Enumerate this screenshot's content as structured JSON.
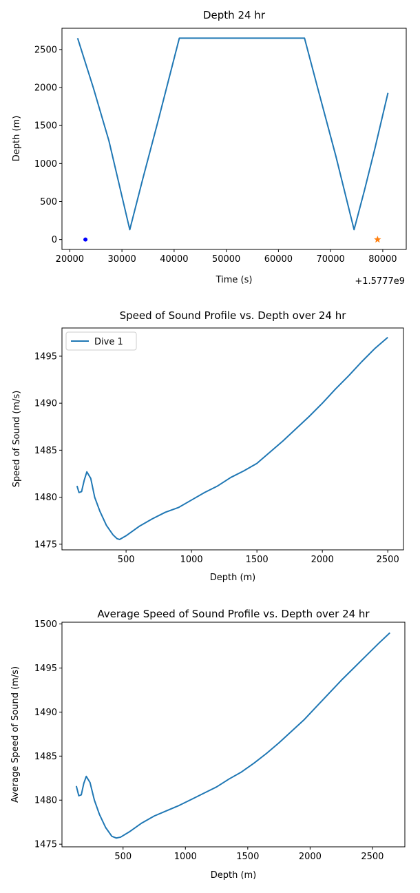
{
  "figure": {
    "background": "#ffffff",
    "line_color": "#1f77b4",
    "marker_blue": "#0000ff",
    "marker_orange": "#ff7f0e"
  },
  "chart_data": [
    {
      "type": "line",
      "title": "Depth 24 hr",
      "xlabel": "Time (s)",
      "ylabel": "Depth (m)",
      "x_offset_label": "+1.5777e9",
      "xlim": [
        18500,
        84500
      ],
      "ylim": [
        -130,
        2780
      ],
      "xticks": [
        20000,
        30000,
        40000,
        50000,
        60000,
        70000,
        80000
      ],
      "xtick_labels": [
        "20000",
        "30000",
        "40000",
        "50000",
        "60000",
        "70000",
        "80000"
      ],
      "yticks": [
        0,
        500,
        1000,
        1500,
        2000,
        2500
      ],
      "ytick_labels": [
        "0",
        "500",
        "1000",
        "1500",
        "2000",
        "2500"
      ],
      "grid": false,
      "series": [
        {
          "x": [
            21500,
            24500,
            27500,
            31500,
            34000,
            37000,
            41000,
            48000,
            56000,
            65000,
            67500,
            71000,
            74500,
            76500,
            78500,
            81000
          ],
          "y": [
            2650,
            2000,
            1300,
            130,
            800,
            1580,
            2650,
            2650,
            2650,
            2650,
            2000,
            1100,
            130,
            650,
            1200,
            1930
          ]
        }
      ],
      "markers": [
        {
          "x": 23000,
          "y": 0,
          "shape": "dot",
          "color": "#0000ff"
        },
        {
          "x": 79000,
          "y": 0,
          "shape": "star",
          "color": "#ff7f0e"
        }
      ]
    },
    {
      "type": "line",
      "title": "Speed of Sound Profile vs. Depth over 24 hr",
      "xlabel": "Depth (m)",
      "ylabel": "Speed of Sound (m/s)",
      "xlim": [
        10,
        2620
      ],
      "ylim": [
        1474.4,
        1498.0
      ],
      "xticks": [
        500,
        1000,
        1500,
        2000,
        2500
      ],
      "xtick_labels": [
        "500",
        "1000",
        "1500",
        "2000",
        "2500"
      ],
      "yticks": [
        1475,
        1480,
        1485,
        1490,
        1495
      ],
      "ytick_labels": [
        "1475",
        "1480",
        "1485",
        "1490",
        "1495"
      ],
      "grid": false,
      "legend": {
        "placement": "top-left"
      },
      "series": [
        {
          "name": "Dive 1",
          "x": [
            125,
            140,
            160,
            180,
            200,
            230,
            260,
            300,
            350,
            400,
            430,
            450,
            500,
            600,
            700,
            800,
            900,
            1000,
            1100,
            1200,
            1300,
            1400,
            1500,
            1600,
            1700,
            1800,
            1900,
            2000,
            2100,
            2200,
            2300,
            2400,
            2500
          ],
          "y": [
            1481.2,
            1480.5,
            1480.6,
            1481.8,
            1482.7,
            1482.0,
            1480.0,
            1478.5,
            1477.0,
            1476.0,
            1475.6,
            1475.5,
            1475.9,
            1476.9,
            1477.7,
            1478.4,
            1478.9,
            1479.7,
            1480.5,
            1481.2,
            1482.1,
            1482.8,
            1483.6,
            1484.8,
            1486.0,
            1487.3,
            1488.6,
            1490.0,
            1491.5,
            1492.9,
            1494.4,
            1495.8,
            1497.0
          ]
        }
      ]
    },
    {
      "type": "line",
      "title": "Average Speed of Sound Profile vs. Depth over 24 hr",
      "xlabel": "Depth (m)",
      "ylabel": "Average Speed of Sound (m/s)",
      "xlim": [
        10,
        2760
      ],
      "ylim": [
        1474.7,
        1500.2
      ],
      "xticks": [
        500,
        1000,
        1500,
        2000,
        2500
      ],
      "xtick_labels": [
        "500",
        "1000",
        "1500",
        "2000",
        "2500"
      ],
      "yticks": [
        1475,
        1480,
        1485,
        1490,
        1495,
        1500
      ],
      "ytick_labels": [
        "1475",
        "1480",
        "1485",
        "1490",
        "1495",
        "1500"
      ],
      "grid": false,
      "series": [
        {
          "x": [
            125,
            145,
            165,
            185,
            205,
            235,
            270,
            310,
            360,
            410,
            445,
            480,
            550,
            650,
            750,
            850,
            950,
            1050,
            1150,
            1250,
            1350,
            1450,
            1550,
            1650,
            1750,
            1850,
            1950,
            2050,
            2150,
            2250,
            2350,
            2450,
            2550,
            2640
          ],
          "y": [
            1481.6,
            1480.5,
            1480.6,
            1481.9,
            1482.7,
            1482.0,
            1480.0,
            1478.4,
            1476.9,
            1475.9,
            1475.7,
            1475.8,
            1476.4,
            1477.4,
            1478.2,
            1478.8,
            1479.4,
            1480.1,
            1480.8,
            1481.5,
            1482.4,
            1483.2,
            1484.2,
            1485.3,
            1486.5,
            1487.8,
            1489.1,
            1490.6,
            1492.1,
            1493.6,
            1495.0,
            1496.4,
            1497.8,
            1499.0
          ]
        }
      ]
    }
  ]
}
